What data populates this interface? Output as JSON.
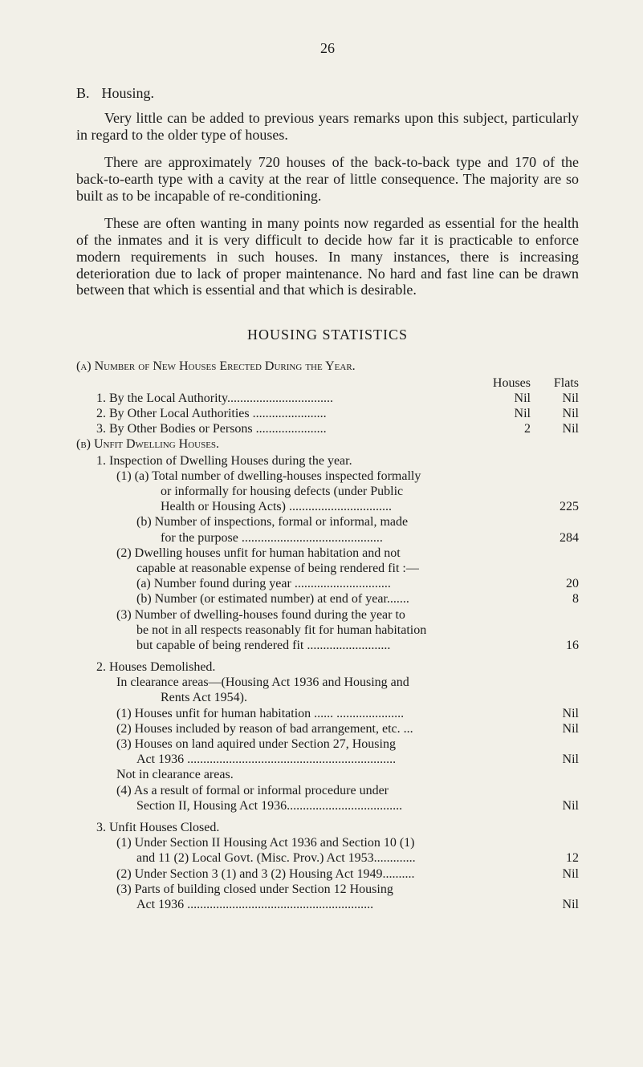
{
  "page_number": "26",
  "section_letter": "B.",
  "section_title": "Housing.",
  "para1": "Very little can be added to previous years remarks upon this subject, particularly in regard to the older type of houses.",
  "para2": "There are approximately 720 houses of the back-to-back type and 170 of the back-to-earth type with a cavity at the rear of little consequence. The majority are so built as to be incapable of re-conditioning.",
  "para3": "These are often wanting in many points now regarded as essential for the health of the inmates and it is very difficult to decide how far it is practicable to enforce modern require­ments in such houses. In many instances, there is increasing deterioration due to lack of proper maintenance. No hard and fast line can be drawn between that which is essential and that which is desirable.",
  "stats_heading": "HOUSING STATISTICS",
  "a_heading": "(a) Number of New Houses Erected During the Year.",
  "a_header_houses": "Houses",
  "a_header_flats": "Flats",
  "a1_label": "1. By the Local Authority.................................",
  "a1_houses": "Nil",
  "a1_flats": "Nil",
  "a2_label": "2. By Other Local Authorities   .......................",
  "a2_houses": "Nil",
  "a2_flats": "Nil",
  "a3_label": "3. By Other Bodies or Persons   ......................",
  "a3_houses": "2",
  "a3_flats": "Nil",
  "b_heading": "(b) Unfit Dwelling Houses.",
  "b1_heading": "1. Inspection of Dwelling Houses during the year.",
  "b1_1_text": "(1)   (a) Total number of dwelling-houses inspected formally",
  "b1_1_text2": "or informally for housing defects (under Public",
  "b1_1_text3": "Health or Housing Acts)   ................................",
  "b1_1_value": "225",
  "b1_1b_text": "(b) Number of inspections, formal or informal, made",
  "b1_1b_text2": "for the purpose   ............................................",
  "b1_1b_value": "284",
  "b1_2_text": "(2)   Dwelling houses unfit for human habitation and not",
  "b1_2_text2": "capable at reasonable expense of being rendered fit :—",
  "b1_2a_text": "(a) Number found during year   ..............................",
  "b1_2a_value": "20",
  "b1_2b_text": "(b) Number (or estimated number) at end of year.......",
  "b1_2b_value": "8",
  "b1_3_text": "(3)   Number of dwelling-houses found during the year to",
  "b1_3_text2": "be not in all respects reasonably fit for human habitation",
  "b1_3_text3": "but capable of being rendered fit     ..........................",
  "b1_3_value": "16",
  "b2_heading": "2. Houses Demolished.",
  "b2_sub_text": "In clearance areas—(Housing Act 1936 and Housing and",
  "b2_sub_text2": "Rents Act 1954).",
  "b2_1_text": "(1)   Houses unfit for human habitation ...... .....................",
  "b2_1_value": "Nil",
  "b2_2_text": "(2)   Houses included by reason of bad arrangement, etc. ...",
  "b2_2_value": "Nil",
  "b2_3_text": "(3)   Houses on land aquired under Section 27, Housing",
  "b2_3_text2": "Act 1936 .................................................................",
  "b2_3_value": "Nil",
  "b2_not_text": "Not in clearance areas.",
  "b2_4_text": "(4)   As a result of formal or informal procedure under",
  "b2_4_text2": "Section II, Housing Act 1936....................................",
  "b2_4_value": "Nil",
  "b3_heading": "3. Unfit Houses Closed.",
  "b3_1_text": "(1)   Under Section II Housing Act 1936 and Section 10 (1)",
  "b3_1_text2": "and 11 (2) Local Govt. (Misc. Prov.) Act 1953.............",
  "b3_1_value": "12",
  "b3_2_text": "(2)   Under Section 3 (1) and 3 (2) Housing Act 1949..........",
  "b3_2_value": "Nil",
  "b3_3_text": "(3)   Parts of building closed under Section 12 Housing",
  "b3_3_text2": "Act 1936  ..........................................................",
  "b3_3_value": "Nil"
}
